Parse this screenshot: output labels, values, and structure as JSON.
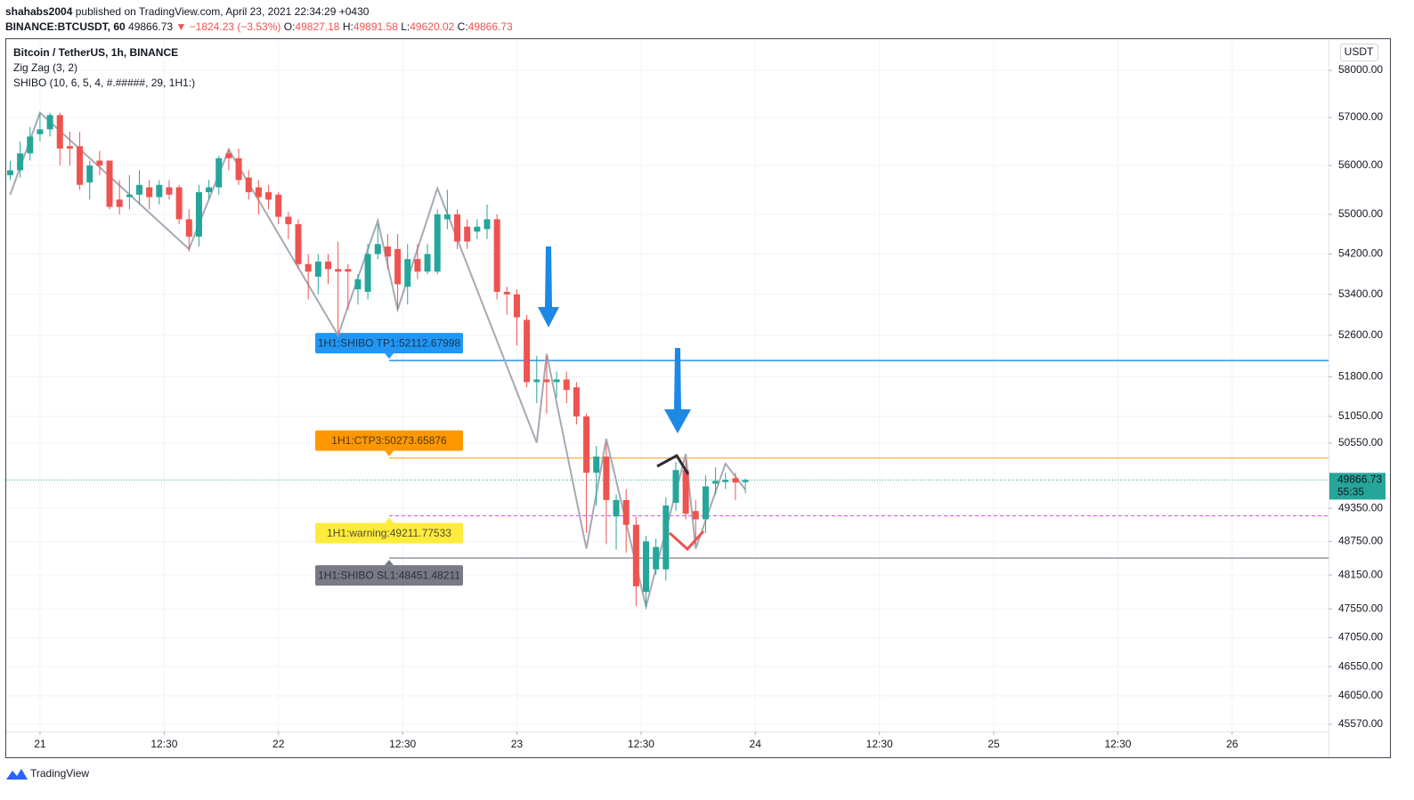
{
  "header": {
    "user": "shahabs2004",
    "published": "published on TradingView.com, April 23, 2021 22:34:29 +0430",
    "symbol": "BINANCE:BTCUSDT, 60",
    "last": "49866.73",
    "change": "−1824.23 (−3.53%)",
    "o_label": "O:",
    "o": "49827.18",
    "h_label": "H:",
    "h": "49891.58",
    "l_label": "L:",
    "l": "49620.02",
    "c_label": "C:",
    "c": "49866.73"
  },
  "footer": {
    "brand": "TradingView"
  },
  "chart_data": {
    "type": "candlestick",
    "title": "Bitcoin / TetherUS, 1h, BINANCE",
    "indicator": "SHIBO (10, 6, 5, 4, #.#####, 29, 1H1:)",
    "currency": "USDT",
    "log_scale": true,
    "grid": true,
    "up_color": "#26a69a",
    "down_color": "#ef5350",
    "x": [
      -3,
      -2,
      -1,
      0,
      1,
      2,
      3,
      4,
      5,
      6,
      7,
      8,
      9,
      10,
      11,
      12,
      13,
      14,
      15,
      16,
      17,
      18,
      19,
      20,
      21,
      22,
      23,
      24,
      25,
      26,
      27,
      28,
      29,
      30,
      31,
      32,
      33,
      34,
      35,
      36,
      37,
      38,
      39,
      40,
      41,
      42,
      43,
      44,
      45,
      46,
      47,
      48,
      49,
      50,
      51,
      52,
      53,
      54,
      55,
      56,
      57,
      58,
      59,
      60,
      61,
      62,
      63,
      64,
      65,
      66,
      67,
      68,
      69,
      70,
      71
    ],
    "open": [
      55800,
      55900,
      56250,
      56650,
      56750,
      57050,
      56400,
      56400,
      55650,
      56100,
      56100,
      55300,
      55350,
      55400,
      55550,
      55350,
      55550,
      55550,
      54900,
      54550,
      55450,
      55550,
      56250,
      56150,
      55750,
      55550,
      55450,
      55400,
      54950,
      54800,
      54000,
      53750,
      54050,
      53900,
      53900,
      53500,
      53450,
      54200,
      54350,
      54300,
      53550,
      54100,
      53850,
      53850,
      54900,
      55000,
      54750,
      54650,
      54700,
      54900,
      53450,
      53400,
      52900,
      51700,
      51750,
      51700,
      51750,
      51600,
      51050,
      50000,
      50300,
      49200,
      49500,
      49050,
      47850,
      48250,
      48250,
      49450,
      50050,
      49300,
      49150,
      49800,
      49830,
      49900,
      49827.18
    ],
    "high": [
      56100,
      56500,
      56800,
      57100,
      57100,
      57100,
      56700,
      56700,
      56100,
      56300,
      56100,
      55700,
      55800,
      55900,
      55700,
      55700,
      55700,
      55600,
      55100,
      55600,
      55700,
      56200,
      56350,
      56350,
      55900,
      55700,
      55600,
      55450,
      55050,
      54900,
      54200,
      54200,
      54200,
      54450,
      54000,
      53800,
      54400,
      54800,
      54600,
      54600,
      54400,
      54400,
      54400,
      55100,
      55500,
      55100,
      54900,
      54900,
      55200,
      55000,
      53550,
      53500,
      53000,
      52200,
      52200,
      51900,
      51900,
      51700,
      51100,
      50500,
      50550,
      49600,
      49700,
      49200,
      48850,
      48800,
      49550,
      50200,
      50250,
      49500,
      49950,
      50100,
      50000,
      50000,
      49891.58
    ],
    "low": [
      55700,
      55750,
      56100,
      56500,
      56600,
      56000,
      56000,
      55500,
      55300,
      55800,
      55100,
      55000,
      55100,
      55200,
      55100,
      55200,
      55300,
      54800,
      54250,
      54350,
      55300,
      55400,
      55900,
      55600,
      55300,
      55000,
      55100,
      54800,
      54500,
      53900,
      53300,
      53400,
      53600,
      52600,
      53100,
      53200,
      53300,
      54100,
      53900,
      53100,
      53200,
      53700,
      53800,
      53800,
      54700,
      54300,
      54300,
      54500,
      54500,
      53300,
      53000,
      52400,
      51600,
      51300,
      51100,
      51400,
      51300,
      50900,
      48900,
      49400,
      48700,
      48600,
      48550,
      47600,
      47550,
      48150,
      48050,
      49300,
      49150,
      48700,
      48900,
      49600,
      49700,
      49500,
      49620.02
    ],
    "close": [
      55900,
      56250,
      56600,
      56750,
      57050,
      56350,
      56350,
      55600,
      56000,
      56000,
      55150,
      55150,
      55400,
      55600,
      55350,
      55600,
      55400,
      54900,
      54550,
      55450,
      55550,
      56150,
      56150,
      55700,
      55450,
      55350,
      55300,
      54950,
      54800,
      54000,
      53850,
      54050,
      53900,
      53850,
      53850,
      53700,
      54200,
      54400,
      54150,
      53600,
      54100,
      53850,
      54200,
      55000,
      55000,
      54450,
      54450,
      54750,
      54900,
      53450,
      53400,
      52950,
      51700,
      51750,
      51700,
      51750,
      51550,
      51050,
      50000,
      50300,
      49500,
      49500,
      49050,
      47950,
      48750,
      48650,
      49400,
      50050,
      49250,
      49150,
      49750,
      49850,
      49870,
      49820,
      49866.73
    ],
    "zigzag": {
      "name": "Zig Zag (3, 2)",
      "color": "#a6a9b2",
      "x": [
        -3,
        0,
        15,
        19,
        30,
        34,
        36,
        40,
        50,
        51,
        55,
        57,
        61,
        65,
        66,
        69,
        71
      ],
      "values": [
        55400,
        57100,
        54300,
        56330,
        52600,
        54870,
        53100,
        55530,
        50560,
        52240,
        48620,
        50630,
        47590,
        50350,
        48620,
        50170,
        49690
      ]
    },
    "levels": [
      {
        "label": "1H1:SHIBO TP1:52112.67998",
        "value": 52112.67998,
        "color": "#2196f3",
        "box_color": "#2196f3",
        "position": "above",
        "style": "solid"
      },
      {
        "label": "1H1:CTP3:50273.65876",
        "value": 50273.65876,
        "color": "#ffb74d",
        "box_color": "#ff9800",
        "position": "above",
        "style": "solid"
      },
      {
        "label": "1H1:warning:49211.77533",
        "value": 49211.77533,
        "color": "#e040fb",
        "box_color": "#ffeb3b",
        "position": "below",
        "style": "dashed"
      },
      {
        "label": "1H1:SHIBO SL1:48451.48211",
        "value": 48451.48211,
        "color": "#9598a1",
        "box_color": "#787b86",
        "position": "below",
        "style": "solid"
      }
    ],
    "price_tag": {
      "value": 49866.73,
      "label": "49866.73",
      "timer": "55:35",
      "color": "#26a69a"
    },
    "xlim": [
      -3.4,
      129.7
    ],
    "ylim": [
      45450,
      58670
    ],
    "xticks": [
      {
        "value": 0,
        "label": "21"
      },
      {
        "value": 12.5,
        "label": "12:30"
      },
      {
        "value": 24,
        "label": "22"
      },
      {
        "value": 36.5,
        "label": "12:30"
      },
      {
        "value": 48,
        "label": "23"
      },
      {
        "value": 60.5,
        "label": "12:30"
      },
      {
        "value": 72,
        "label": "24"
      },
      {
        "value": 84.5,
        "label": "12:30"
      },
      {
        "value": 96,
        "label": "25"
      },
      {
        "value": 108.5,
        "label": "12:30"
      },
      {
        "value": 120,
        "label": "26"
      }
    ],
    "yticks": [
      {
        "value": 58000,
        "label": "58000.00"
      },
      {
        "value": 57000,
        "label": "57000.00"
      },
      {
        "value": 56000,
        "label": "56000.00"
      },
      {
        "value": 55000,
        "label": "55000.00"
      },
      {
        "value": 54200,
        "label": "54200.00"
      },
      {
        "value": 53400,
        "label": "53400.00"
      },
      {
        "value": 52600,
        "label": "52600.00"
      },
      {
        "value": 51800,
        "label": "51800.00"
      },
      {
        "value": 51050,
        "label": "51050.00"
      },
      {
        "value": 50550,
        "label": "50550.00"
      },
      {
        "value": 49350,
        "label": "49350.00"
      },
      {
        "value": 48750,
        "label": "48750.00"
      },
      {
        "value": 48150,
        "label": "48150.00"
      },
      {
        "value": 47550,
        "label": "47550.00"
      },
      {
        "value": 47050,
        "label": "47050.00"
      },
      {
        "value": 46550,
        "label": "46550.00"
      },
      {
        "value": 46050,
        "label": "46050.00"
      },
      {
        "value": 45570,
        "label": "45570.00"
      }
    ]
  }
}
